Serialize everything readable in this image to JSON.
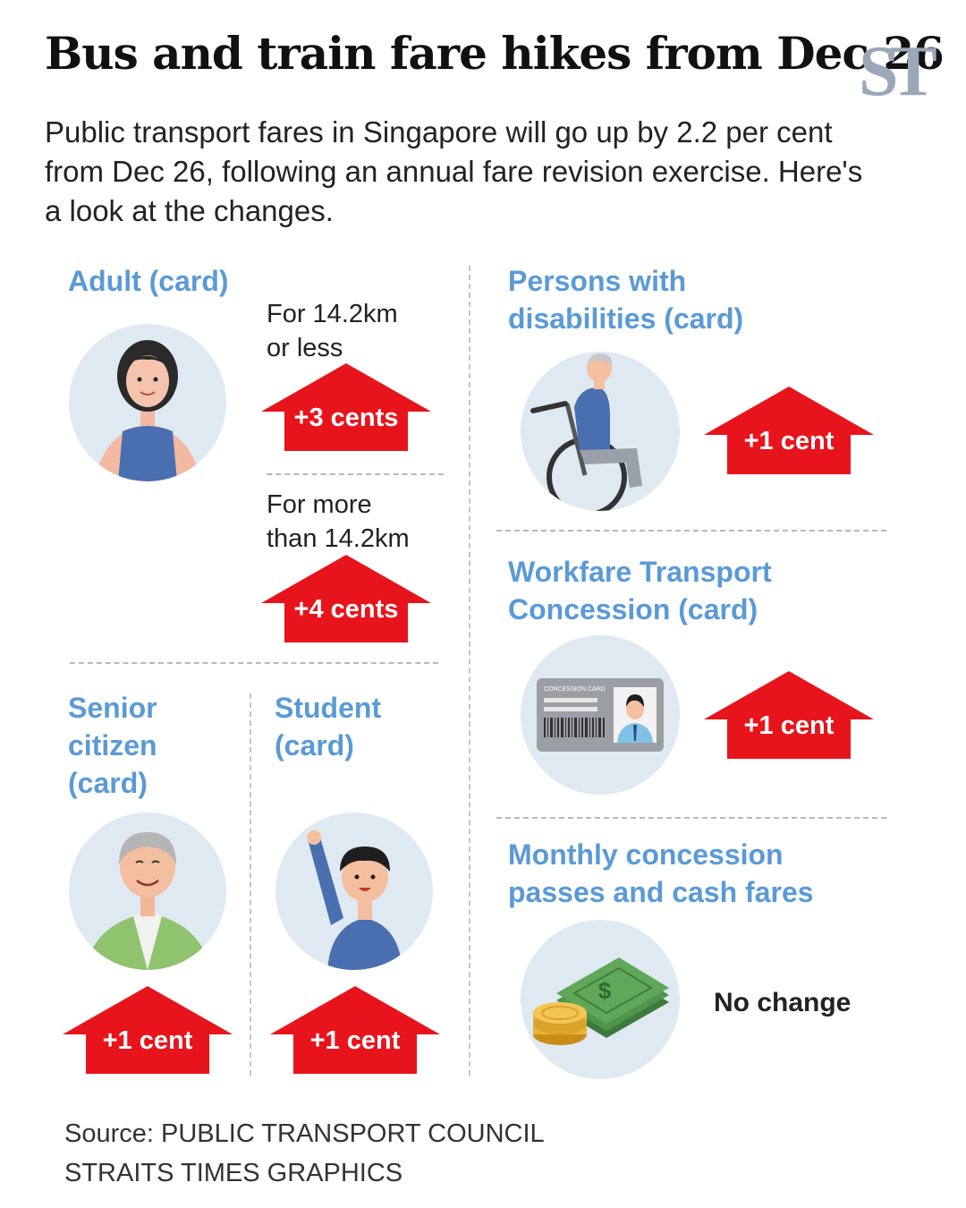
{
  "header": {
    "title": "Bus and train fare hikes from Dec 26",
    "logo": "ST",
    "intro": "Public transport fares in Singapore will go up by 2.2 per cent from Dec 26, following an annual fare revision exercise. Here's a look at the changes."
  },
  "adult": {
    "label": "Adult (card)",
    "short_line1": "For 14.2km",
    "short_line2": "or less",
    "short_change": "+3 cents",
    "long_line1": "For more",
    "long_line2": "than 14.2km",
    "long_change": "+4 cents"
  },
  "senior": {
    "line1": "Senior",
    "line2": "citizen",
    "line3": "(card)",
    "change": "+1 cent"
  },
  "student": {
    "line1": "Student",
    "line2": "(card)",
    "change": "+1 cent"
  },
  "disabilities": {
    "line1": "Persons with",
    "line2": "disabilities (card)",
    "change": "+1 cent"
  },
  "workfare": {
    "line1": "Workfare Transport",
    "line2": "Concession (card)",
    "card_text": "CONCESSION CARD",
    "change": "+1 cent"
  },
  "monthly": {
    "line1": "Monthly concession",
    "line2": "passes and cash fares",
    "change": "No change"
  },
  "footer": {
    "source": "Source: PUBLIC TRANSPORT COUNCIL",
    "credit": "STRAITS TIMES GRAPHICS"
  },
  "colors": {
    "accent_blue": "#5a9ad6",
    "arrow_red": "#e8141c",
    "circle_bg": "#dfe9f1"
  },
  "icons": [
    "woman-icon",
    "wheelchair-user-icon",
    "concession-card-icon",
    "senior-man-icon",
    "student-icon",
    "money-icon",
    "up-arrow-icon"
  ]
}
